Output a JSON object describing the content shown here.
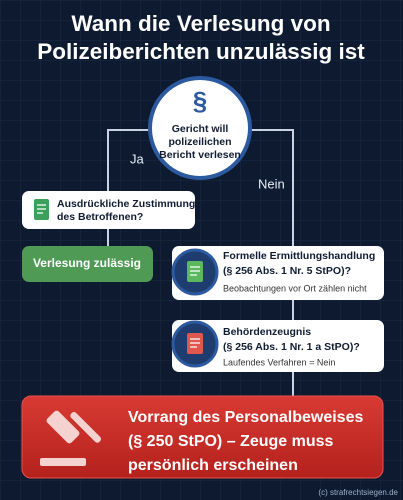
{
  "title": [
    "Wann die Verlesung von",
    "Polizeiberichten unzulässig ist"
  ],
  "start": {
    "icon": "§",
    "lines": [
      "Gericht will",
      "polizeilichen",
      "Bericht verlesen"
    ]
  },
  "branches": {
    "yes": "Ja",
    "no": "Nein"
  },
  "yes_question": {
    "lines": [
      "Ausdrückliche Zustimmung",
      "des Betroffenen?"
    ]
  },
  "yes_result": "Verlesung zulässig",
  "checks": [
    {
      "lines": [
        "Formelle Ermittlungshandlung",
        "(§ 256 Abs. 1 Nr. 5 StPO)?"
      ],
      "note": "Beobachtungen vor Ort zählen nicht"
    },
    {
      "lines": [
        "Behördenzeugnis",
        "(§ 256 Abs. 1 Nr. 1 a StPO)?"
      ],
      "note": "Laufendes Verfahren = Nein"
    }
  ],
  "final": {
    "lines": [
      "Vorrang des Personalbeweises",
      "(§ 250 StPO) – Zeuge muss",
      "persönlich erscheinen"
    ]
  },
  "footer": "(c) strafrechtsiegen.de"
}
